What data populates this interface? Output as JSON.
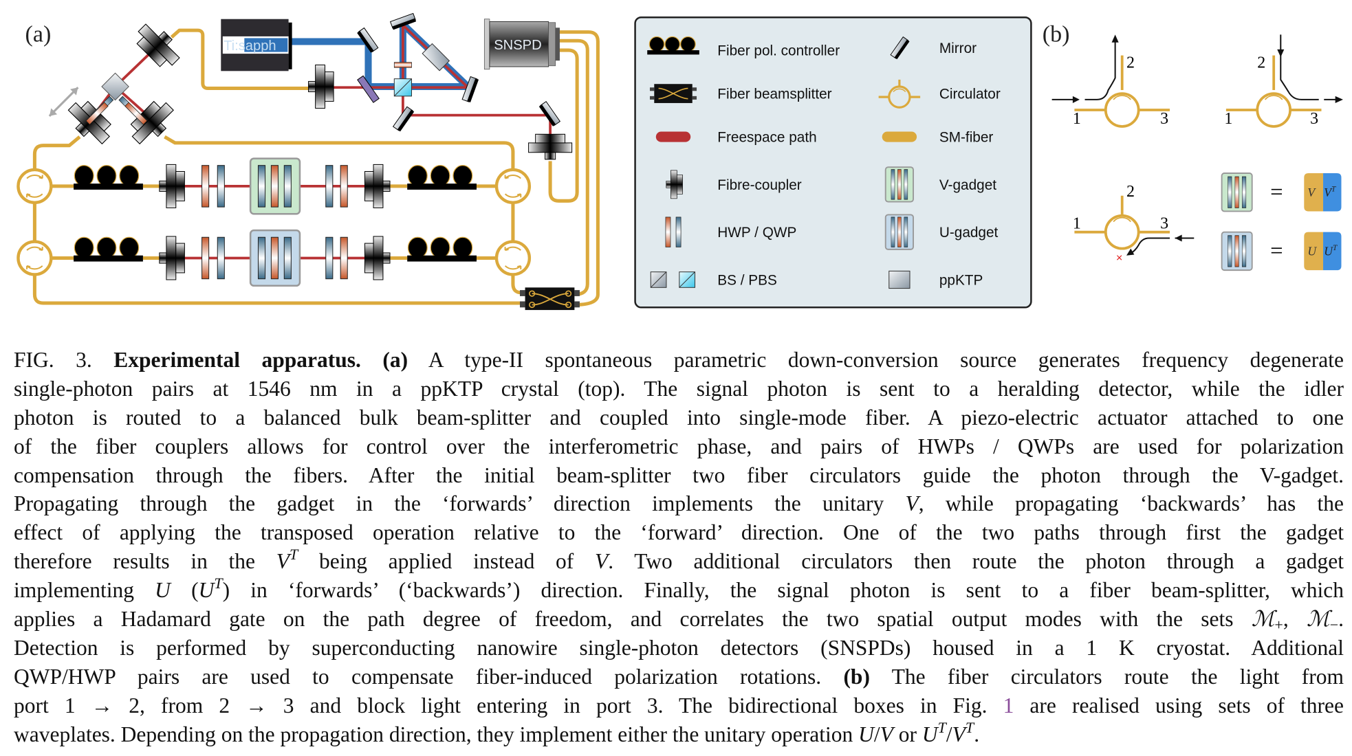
{
  "panel_a": {
    "label": "(a)",
    "laser_label": "Ti:sapph",
    "detector_label": "SNSPD"
  },
  "legend": {
    "items": [
      {
        "label": "Fiber pol. controller",
        "icon": "fiber-pol-controller-icon"
      },
      {
        "label": "Mirror",
        "icon": "mirror-icon"
      },
      {
        "label": "Fiber beamsplitter",
        "icon": "fiber-beamsplitter-icon"
      },
      {
        "label": "Circulator",
        "icon": "circulator-icon"
      },
      {
        "label": "Freespace path",
        "icon": "freespace-path-icon"
      },
      {
        "label": "SM-fiber",
        "icon": "sm-fiber-icon"
      },
      {
        "label": "Fibre-coupler",
        "icon": "fibre-coupler-icon"
      },
      {
        "label": "V-gadget",
        "icon": "v-gadget-icon"
      },
      {
        "label": "HWP / QWP",
        "icon": "waveplate-icon"
      },
      {
        "label": "U-gadget",
        "icon": "u-gadget-icon"
      },
      {
        "label": "BS / PBS",
        "icon": "beamsplitter-icon"
      },
      {
        "label": "ppKTP",
        "icon": "crystal-icon"
      }
    ]
  },
  "panel_b": {
    "label": "(b)",
    "ports": {
      "p1": "1",
      "p2": "2",
      "p3": "3"
    },
    "equals": "=",
    "v_eq": {
      "fwd": "V",
      "bwd": "V",
      "sup": "T"
    },
    "u_eq": {
      "fwd": "U",
      "bwd": "U",
      "sup": "T"
    }
  },
  "colors": {
    "fiber": "#dba93c",
    "freespace": "#b83234",
    "pump": "#2f72b8",
    "legend_bg": "#e1eaee",
    "v_gadget": "#c9e8cd",
    "u_gadget": "#c4d9ea",
    "block_mark": "#e02020",
    "reference_link": "#8a4d9a"
  },
  "caption": {
    "lines": [
      [
        {
          "t": "FIG. 3. "
        },
        {
          "t": "Experimental apparatus.",
          "s": "b"
        },
        {
          "t": " "
        },
        {
          "t": "(a)",
          "s": "b"
        },
        {
          "t": " A type-II spontaneous parametric down-conversion source generates frequency degenerate"
        }
      ],
      [
        {
          "t": "single-photon pairs at 1546 nm in a ppKTP crystal (top).  The signal photon is sent to a heralding detector, while the idler"
        }
      ],
      [
        {
          "t": "photon is routed to a balanced bulk beam-splitter and coupled into single-mode fiber. A piezo-electric actuator attached to one"
        }
      ],
      [
        {
          "t": "of the fiber couplers allows for control over the interferometric phase, and pairs of HWPs / QWPs are used for polarization"
        }
      ],
      [
        {
          "t": "compensation through the fibers.  After the initial beam-splitter two fiber circulators guide the photon through the V-gadget."
        }
      ],
      [
        {
          "t": "Propagating through the gadget in the ‘forwards’ direction implements the unitary "
        },
        {
          "t": "V",
          "s": "i"
        },
        {
          "t": ", while propagating ‘backwards’ has the"
        }
      ],
      [
        {
          "t": "effect of applying the transposed operation relative to the ‘forward’ direction.  One of the two paths through first the gadget"
        }
      ],
      [
        {
          "t": "therefore results in the "
        },
        {
          "t": "V",
          "s": "i"
        },
        {
          "t": "T",
          "s": "sup"
        },
        {
          "t": " being applied instead of "
        },
        {
          "t": "V",
          "s": "i"
        },
        {
          "t": ".  Two additional circulators then route the photon through a gadget"
        }
      ],
      [
        {
          "t": "implementing "
        },
        {
          "t": "U",
          "s": "i"
        },
        {
          "t": " ("
        },
        {
          "t": "U",
          "s": "i"
        },
        {
          "t": "T",
          "s": "sup"
        },
        {
          "t": ") in ‘forwards’ (‘backwards’) direction.  Finally, the signal photon is sent to a fiber beam-splitter, which"
        }
      ],
      [
        {
          "t": "applies a Hadamard gate on the path degree of freedom, and correlates the two spatial output modes with the sets "
        },
        {
          "t": "ℳ",
          "s": "i"
        },
        {
          "t": "+",
          "s": "sub"
        },
        {
          "t": ", "
        },
        {
          "t": "ℳ",
          "s": "i"
        },
        {
          "t": "−",
          "s": "sub"
        },
        {
          "t": "."
        }
      ],
      [
        {
          "t": "Detection is performed by superconducting nanowire single-photon detectors (SNSPDs) housed in a 1 K cryostat.  Additional"
        }
      ],
      [
        {
          "t": "QWP/HWP pairs are used to compensate fiber-induced polarization rotations.  "
        },
        {
          "t": "(b)",
          "s": "b"
        },
        {
          "t": " The fiber circulators route the light from"
        }
      ],
      [
        {
          "t": "port 1 → 2, from 2 → 3 and block light entering in port 3.  The bidirectional boxes in Fig. "
        },
        {
          "t": "1",
          "s": "ref"
        },
        {
          "t": " are realised using sets of three"
        }
      ],
      [
        {
          "t": "waveplates. Depending on the propagation direction, they implement either the unitary operation "
        },
        {
          "t": "U",
          "s": "i"
        },
        {
          "t": "/"
        },
        {
          "t": "V",
          "s": "i"
        },
        {
          "t": " or "
        },
        {
          "t": "U",
          "s": "i"
        },
        {
          "t": "T",
          "s": "sup"
        },
        {
          "t": "/"
        },
        {
          "t": "V",
          "s": "i"
        },
        {
          "t": "T",
          "s": "sup"
        },
        {
          "t": "."
        }
      ]
    ]
  }
}
